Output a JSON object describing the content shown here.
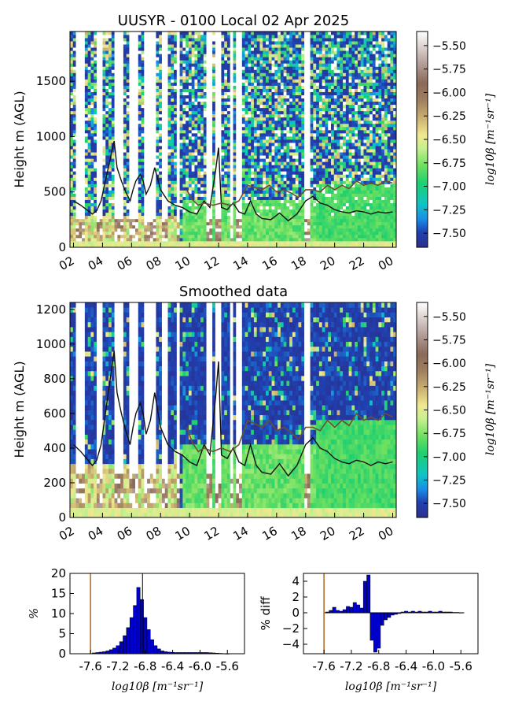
{
  "chart_data": [
    {
      "type": "heatmap",
      "title": "UUSYR - 0100 Local 02 Apr 2025",
      "ylabel": "Height m (AGL)",
      "x_ticks": [
        "02",
        "04",
        "06",
        "08",
        "10",
        "12",
        "14",
        "16",
        "18",
        "20",
        "22",
        "00"
      ],
      "y_ticks": [
        0,
        500,
        1000,
        1500
      ],
      "ylim": [
        0,
        1950
      ],
      "colorbar_label": "log10β [m⁻¹sr⁻¹]",
      "colorbar_ticks": [
        "-5.50",
        "-5.75",
        "-6.00",
        "-6.25",
        "-6.50",
        "-6.75",
        "-7.00",
        "-7.25",
        "-7.50"
      ],
      "colorbar_range": [
        -7.65,
        -5.35
      ],
      "line_black": [
        [
          2.0,
          420
        ],
        [
          2.5,
          380
        ],
        [
          3.0,
          330
        ],
        [
          3.3,
          300
        ],
        [
          3.6,
          330
        ],
        [
          3.9,
          420
        ],
        [
          4.2,
          600
        ],
        [
          4.5,
          780
        ],
        [
          4.8,
          960
        ],
        [
          5.0,
          720
        ],
        [
          5.3,
          600
        ],
        [
          5.6,
          500
        ],
        [
          5.9,
          420
        ],
        [
          6.1,
          520
        ],
        [
          6.3,
          600
        ],
        [
          6.6,
          660
        ],
        [
          6.8,
          600
        ],
        [
          7.0,
          480
        ],
        [
          7.3,
          560
        ],
        [
          7.6,
          720
        ],
        [
          8.0,
          520
        ],
        [
          8.5,
          420
        ],
        [
          9.0,
          380
        ],
        [
          9.5,
          360
        ],
        [
          10.0,
          320
        ],
        [
          10.5,
          300
        ],
        [
          11.0,
          420
        ],
        [
          11.4,
          360
        ],
        [
          11.8,
          700
        ],
        [
          12.0,
          900
        ],
        [
          12.2,
          360
        ],
        [
          12.6,
          340
        ],
        [
          13.0,
          400
        ],
        [
          13.4,
          320
        ],
        [
          13.8,
          300
        ],
        [
          14.2,
          420
        ],
        [
          14.6,
          300
        ],
        [
          15.0,
          260
        ],
        [
          15.6,
          250
        ],
        [
          16.2,
          310
        ],
        [
          16.8,
          240
        ],
        [
          17.4,
          300
        ],
        [
          18.0,
          420
        ],
        [
          18.5,
          460
        ],
        [
          19.0,
          400
        ],
        [
          19.5,
          380
        ],
        [
          20.0,
          340
        ],
        [
          20.5,
          320
        ],
        [
          21.0,
          310
        ],
        [
          21.5,
          330
        ],
        [
          22.0,
          320
        ],
        [
          22.5,
          300
        ],
        [
          23.0,
          320
        ],
        [
          23.5,
          310
        ],
        [
          24.0,
          320
        ]
      ],
      "line_brown": [
        [
          9.8,
          520
        ],
        [
          10.2,
          430
        ],
        [
          10.6,
          380
        ],
        [
          11.0,
          400
        ],
        [
          11.6,
          380
        ],
        [
          12.2,
          400
        ],
        [
          12.8,
          380
        ],
        [
          13.4,
          420
        ],
        [
          14.0,
          560
        ],
        [
          14.5,
          540
        ],
        [
          15.0,
          520
        ],
        [
          15.5,
          560
        ],
        [
          16.0,
          500
        ],
        [
          16.5,
          520
        ],
        [
          17.0,
          490
        ],
        [
          17.5,
          450
        ],
        [
          18.0,
          520
        ],
        [
          18.5,
          520
        ],
        [
          19.0,
          500
        ],
        [
          19.5,
          560
        ],
        [
          20.0,
          520
        ],
        [
          20.5,
          560
        ],
        [
          21.0,
          530
        ],
        [
          21.5,
          600
        ],
        [
          22.0,
          560
        ],
        [
          22.5,
          580
        ],
        [
          23.0,
          560
        ],
        [
          23.5,
          600
        ],
        [
          24.0,
          580
        ]
      ],
      "white_gaps": [
        [
          2.5,
          2.9
        ],
        [
          3.8,
          4.1
        ],
        [
          5.1,
          5.5
        ],
        [
          6.0,
          6.6
        ],
        [
          7.0,
          7.8
        ],
        [
          8.3,
          8.6
        ],
        [
          9.2,
          9.4
        ],
        [
          11.3,
          11.6
        ],
        [
          11.9,
          12.1
        ],
        [
          12.8,
          13.0
        ],
        [
          13.3,
          13.5
        ],
        [
          17.9,
          18.2
        ]
      ]
    },
    {
      "type": "heatmap",
      "title": "Smoothed data",
      "ylabel": "Height m (AGL)",
      "x_ticks": [
        "02",
        "04",
        "06",
        "08",
        "10",
        "12",
        "14",
        "16",
        "18",
        "20",
        "22",
        "00"
      ],
      "y_ticks": [
        0,
        200,
        400,
        600,
        800,
        1000,
        1200
      ],
      "ylim": [
        0,
        1240
      ],
      "colorbar_label": "log10β [m⁻¹sr⁻¹]",
      "colorbar_ticks": [
        "-5.50",
        "-5.75",
        "-6.00",
        "-6.25",
        "-6.50",
        "-6.75",
        "-7.00",
        "-7.25",
        "-7.50"
      ],
      "colorbar_range": [
        -7.65,
        -5.35
      ]
    },
    {
      "type": "bar",
      "ylabel": "%",
      "xlabel": "log10β [m⁻¹sr⁻¹]",
      "x_ticks": [
        "-7.6",
        "-7.2",
        "-6.8",
        "-6.4",
        "-6.0",
        "-5.6"
      ],
      "xlim": [
        -7.9,
        -5.35
      ],
      "ylim": [
        0,
        20
      ],
      "y_ticks": [
        0,
        5,
        10,
        15,
        20
      ],
      "threshold_x": -7.6,
      "marker_x": -6.84,
      "bins": [
        -7.55,
        -7.5,
        -7.45,
        -7.4,
        -7.35,
        -7.3,
        -7.25,
        -7.2,
        -7.15,
        -7.1,
        -7.05,
        -7.0,
        -6.95,
        -6.9,
        -6.85,
        -6.8,
        -6.75,
        -6.7,
        -6.65,
        -6.6,
        -6.55,
        -6.5,
        -6.45,
        -6.4,
        -6.35,
        -6.3,
        -6.25,
        -6.2,
        -6.15,
        -6.1,
        -6.05,
        -6.0,
        -5.95,
        -5.9,
        -5.85,
        -5.8,
        -5.75,
        -5.7,
        -5.65,
        -5.6
      ],
      "values": [
        0.2,
        0.3,
        0.4,
        0.5,
        0.7,
        1.0,
        1.4,
        2.0,
        3.0,
        4.5,
        6.5,
        9.0,
        12.0,
        16.5,
        13.5,
        9.0,
        6.0,
        3.5,
        2.0,
        1.2,
        0.7,
        0.5,
        0.4,
        0.35,
        0.3,
        0.3,
        0.3,
        0.3,
        0.3,
        0.3,
        0.3,
        0.3,
        0.3,
        0.3,
        0.25,
        0.2,
        0.15,
        0.1,
        0.05,
        0.02
      ]
    },
    {
      "type": "bar",
      "ylabel": "% diff",
      "xlabel": "log10β [m⁻¹sr⁻¹]",
      "x_ticks": [
        "-7.6",
        "-7.2",
        "-6.8",
        "-6.4",
        "-6.0",
        "-5.6"
      ],
      "xlim": [
        -7.9,
        -5.35
      ],
      "ylim": [
        -5.2,
        5.0
      ],
      "y_ticks": [
        -4,
        -2,
        0,
        2,
        4
      ],
      "threshold_x": -7.6,
      "bins": [
        -7.55,
        -7.5,
        -7.45,
        -7.4,
        -7.35,
        -7.3,
        -7.25,
        -7.2,
        -7.15,
        -7.1,
        -7.05,
        -7.0,
        -6.95,
        -6.9,
        -6.85,
        -6.8,
        -6.75,
        -6.7,
        -6.65,
        -6.6,
        -6.55,
        -6.5,
        -6.45,
        -6.4,
        -6.35,
        -6.3,
        -6.25,
        -6.2,
        -6.15,
        -6.1,
        -6.05,
        -6.0,
        -5.95,
        -5.9,
        -5.85,
        -5.8,
        -5.75,
        -5.7,
        -5.65,
        -5.6
      ],
      "values": [
        0.1,
        0.3,
        0.7,
        0.3,
        0.2,
        0.4,
        0.8,
        0.7,
        1.3,
        1.0,
        0.6,
        4.0,
        4.8,
        -3.5,
        -5.0,
        -4.5,
        -1.6,
        -0.9,
        -0.6,
        -0.3,
        -0.2,
        -0.1,
        0.1,
        0.2,
        0.1,
        0.2,
        0.1,
        0.2,
        0.1,
        0.1,
        0.2,
        0.1,
        0.1,
        0.2,
        0.1,
        0.1,
        0.1,
        0.05,
        0.05,
        0.02
      ]
    }
  ]
}
